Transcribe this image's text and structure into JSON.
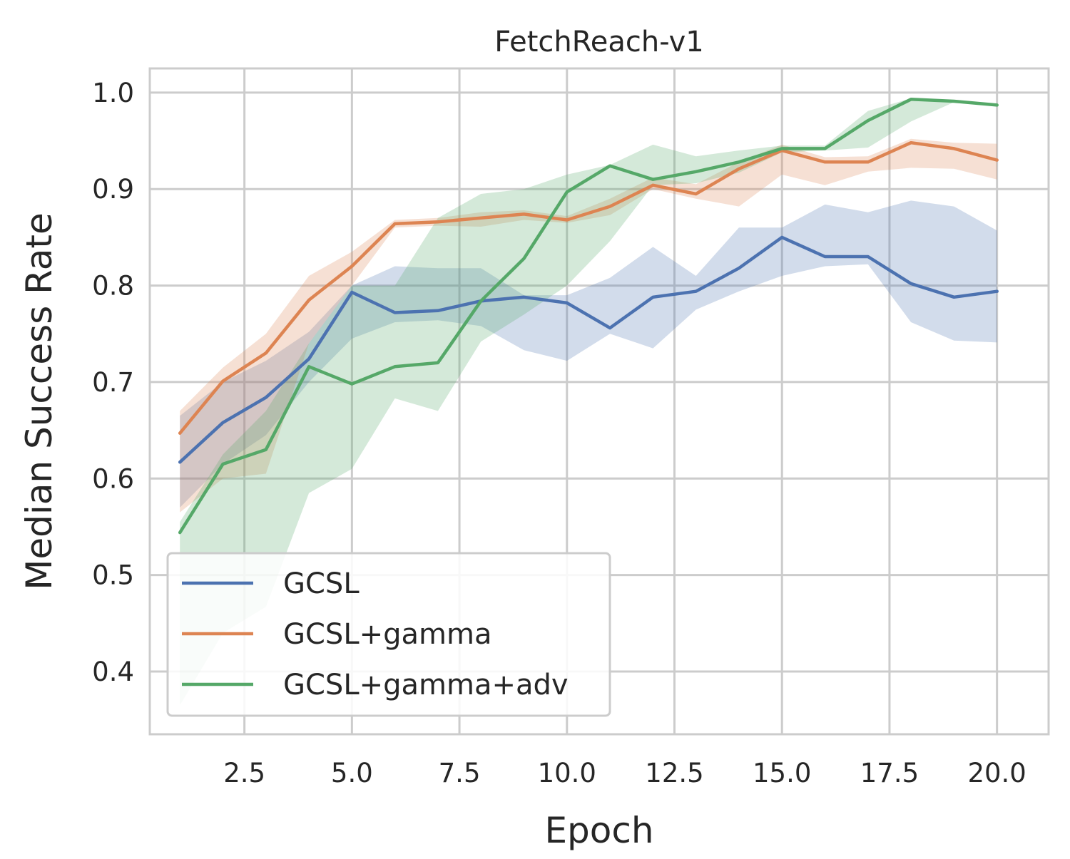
{
  "chart_data": {
    "type": "line",
    "title": "FetchReach-v1",
    "xlabel": "Epoch",
    "ylabel": "Median Success Rate",
    "xlim": [
      0.3,
      21.2
    ],
    "ylim": [
      0.335,
      1.025
    ],
    "xticks": [
      2.5,
      5.0,
      7.5,
      10.0,
      12.5,
      15.0,
      17.5,
      20.0
    ],
    "xtick_labels": [
      "2.5",
      "5.0",
      "7.5",
      "10.0",
      "12.5",
      "15.0",
      "17.5",
      "20.0"
    ],
    "yticks": [
      0.4,
      0.5,
      0.6,
      0.7,
      0.8,
      0.9,
      1.0
    ],
    "ytick_labels": [
      "0.4",
      "0.5",
      "0.6",
      "0.7",
      "0.8",
      "0.9",
      "1.0"
    ],
    "grid": true,
    "legend_position": "lower-left",
    "x": [
      1,
      2,
      3,
      4,
      5,
      6,
      7,
      8,
      9,
      10,
      11,
      12,
      13,
      14,
      15,
      16,
      17,
      18,
      19,
      20
    ],
    "series": [
      {
        "name": "GCSL",
        "color": "#4c72b0",
        "values": [
          0.617,
          0.658,
          0.684,
          0.724,
          0.793,
          0.772,
          0.774,
          0.784,
          0.788,
          0.782,
          0.756,
          0.788,
          0.794,
          0.818,
          0.85,
          0.83,
          0.83,
          0.802,
          0.788,
          0.794
        ],
        "lower": [
          0.57,
          0.615,
          0.645,
          0.7,
          0.745,
          0.762,
          0.764,
          0.758,
          0.733,
          0.722,
          0.75,
          0.735,
          0.775,
          0.794,
          0.81,
          0.82,
          0.822,
          0.762,
          0.743,
          0.741
        ],
        "upper": [
          0.665,
          0.7,
          0.722,
          0.752,
          0.8,
          0.82,
          0.818,
          0.818,
          0.79,
          0.79,
          0.808,
          0.84,
          0.81,
          0.86,
          0.86,
          0.884,
          0.876,
          0.888,
          0.882,
          0.857
        ]
      },
      {
        "name": "GCSL+gamma",
        "color": "#dd8452",
        "values": [
          0.647,
          0.701,
          0.73,
          0.785,
          0.82,
          0.864,
          0.866,
          0.87,
          0.874,
          0.868,
          0.882,
          0.904,
          0.895,
          0.921,
          0.94,
          0.928,
          0.928,
          0.948,
          0.942,
          0.93
        ],
        "lower": [
          0.565,
          0.6,
          0.605,
          0.74,
          0.8,
          0.86,
          0.862,
          0.861,
          0.868,
          0.865,
          0.873,
          0.9,
          0.89,
          0.882,
          0.915,
          0.904,
          0.918,
          0.922,
          0.921,
          0.91
        ],
        "upper": [
          0.67,
          0.715,
          0.75,
          0.81,
          0.835,
          0.868,
          0.87,
          0.876,
          0.878,
          0.872,
          0.89,
          0.912,
          0.905,
          0.928,
          0.946,
          0.933,
          0.934,
          0.952,
          0.948,
          0.947
        ]
      },
      {
        "name": "GCSL+gamma+adv",
        "color": "#55a868",
        "values": [
          0.544,
          0.615,
          0.63,
          0.716,
          0.698,
          0.716,
          0.72,
          0.784,
          0.828,
          0.897,
          0.924,
          0.91,
          0.918,
          0.928,
          0.942,
          0.942,
          0.971,
          0.993,
          0.991,
          0.987
        ],
        "lower": [
          0.365,
          0.44,
          0.467,
          0.585,
          0.61,
          0.683,
          0.67,
          0.742,
          0.77,
          0.8,
          0.846,
          0.904,
          0.906,
          0.917,
          0.938,
          0.94,
          0.943,
          0.97,
          0.99,
          0.986
        ],
        "upper": [
          0.555,
          0.625,
          0.67,
          0.74,
          0.8,
          0.8,
          0.87,
          0.895,
          0.9,
          0.915,
          0.925,
          0.946,
          0.934,
          0.94,
          0.945,
          0.945,
          0.981,
          0.994,
          0.992,
          0.988
        ]
      }
    ]
  }
}
